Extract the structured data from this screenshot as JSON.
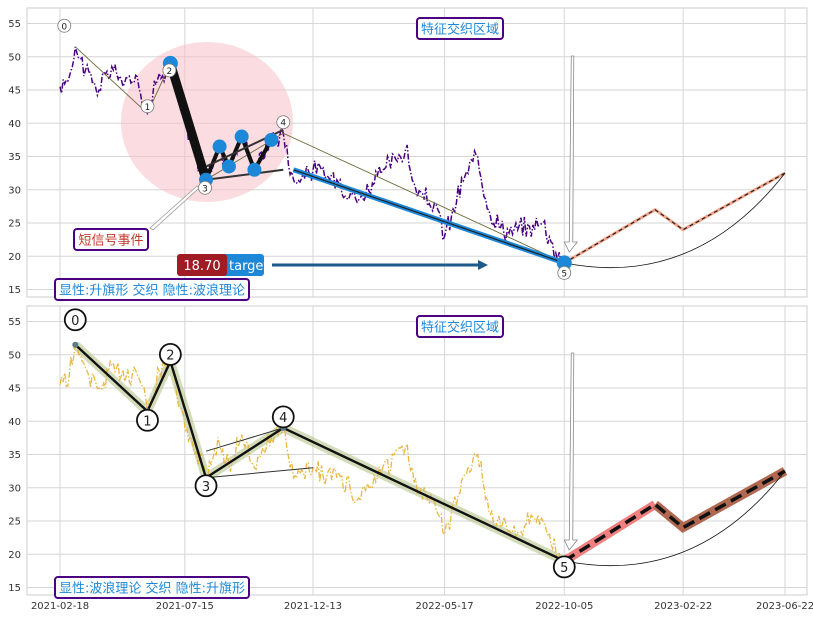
{
  "chart_data": [
    {
      "type": "line",
      "panel": "top",
      "x_ticks": [
        "2021-02-18",
        "2021-07-15",
        "2021-12-13",
        "2022-05-17",
        "2022-10-05",
        "2023-02-22",
        "2023-06-22"
      ],
      "y_ticks": [
        15,
        20,
        25,
        30,
        35,
        40,
        45,
        50,
        55
      ],
      "ylim": [
        14,
        58
      ],
      "grid": true,
      "price_series": {
        "color": "#4b0082",
        "anchors": [
          [
            "2021-02-18",
            45.5
          ],
          [
            "2021-03-01",
            47
          ],
          [
            "2021-03-08",
            51.5
          ],
          [
            "2021-03-20",
            48
          ],
          [
            "2021-04-05",
            45
          ],
          [
            "2021-04-20",
            48.5
          ],
          [
            "2021-05-05",
            46
          ],
          [
            "2021-05-20",
            47
          ],
          [
            "2021-06-01",
            41.5
          ],
          [
            "2021-06-15",
            47.5
          ],
          [
            "2021-06-28",
            49
          ],
          [
            "2021-07-10",
            42
          ],
          [
            "2021-07-25",
            36
          ],
          [
            "2021-08-09",
            31.5
          ],
          [
            "2021-08-25",
            36.5
          ],
          [
            "2021-09-05",
            33.5
          ],
          [
            "2021-09-20",
            38
          ],
          [
            "2021-10-05",
            33
          ],
          [
            "2021-10-25",
            37.5
          ],
          [
            "2021-11-08",
            38.5
          ],
          [
            "2021-11-20",
            31.5
          ],
          [
            "2021-12-13",
            33
          ],
          [
            "2022-01-10",
            31.5
          ],
          [
            "2022-02-05",
            28.5
          ],
          [
            "2022-03-05",
            33
          ],
          [
            "2022-04-01",
            36
          ],
          [
            "2022-04-15",
            29
          ],
          [
            "2022-05-05",
            28
          ],
          [
            "2022-05-17",
            23
          ],
          [
            "2022-06-10",
            32
          ],
          [
            "2022-06-25",
            35
          ],
          [
            "2022-07-10",
            26
          ],
          [
            "2022-08-01",
            23.5
          ],
          [
            "2022-08-25",
            24.5
          ],
          [
            "2022-09-10",
            25
          ],
          [
            "2022-09-25",
            20.5
          ],
          [
            "2022-10-05",
            19
          ]
        ]
      },
      "wave_points": [
        {
          "label": "0",
          "date": "2021-03-08",
          "value": 51.5
        },
        {
          "label": "1",
          "date": "2021-06-01",
          "value": 41.5
        },
        {
          "label": "2",
          "date": "2021-06-28",
          "value": 49
        },
        {
          "label": "3",
          "date": "2021-08-09",
          "value": 31.5
        },
        {
          "label": "4",
          "date": "2021-11-08",
          "value": 38.5
        },
        {
          "label": "5",
          "date": "2022-10-05",
          "value": 19
        }
      ],
      "flag_markers": [
        {
          "date": "2021-06-28",
          "value": 49
        },
        {
          "date": "2021-08-09",
          "value": 31.5
        },
        {
          "date": "2021-08-25",
          "value": 36.5
        },
        {
          "date": "2021-09-05",
          "value": 33.5
        },
        {
          "date": "2021-09-20",
          "value": 38
        },
        {
          "date": "2021-10-05",
          "value": 33
        },
        {
          "date": "2021-10-25",
          "value": 37.5
        },
        {
          "date": "2022-10-05",
          "value": 19
        }
      ],
      "projection": [
        {
          "date": "2022-10-05",
          "value": 19
        },
        {
          "date": "2023-01-20",
          "value": 27
        },
        {
          "date": "2023-02-22",
          "value": 24
        },
        {
          "date": "2023-06-22",
          "value": 32.5
        }
      ],
      "target": {
        "label": "target",
        "value": "18.70"
      },
      "annotations": {
        "feature_box": "特征交织区域",
        "signal_box": "短信号事件",
        "legend_box": "显性:升旗形 交织 隐性:波浪理论"
      }
    },
    {
      "type": "line",
      "panel": "bottom",
      "x_ticks": [
        "2021-02-18",
        "2021-07-15",
        "2021-12-13",
        "2022-05-17",
        "2022-10-05",
        "2023-02-22",
        "2023-06-22"
      ],
      "y_ticks": [
        15,
        20,
        25,
        30,
        35,
        40,
        45,
        50,
        55
      ],
      "ylim": [
        14,
        58
      ],
      "grid": true,
      "price_series": {
        "color": "#e8b030"
      },
      "wave_points": [
        {
          "label": "0",
          "date": "2021-03-08",
          "value": 51.5
        },
        {
          "label": "1",
          "date": "2021-06-01",
          "value": 41.5
        },
        {
          "label": "2",
          "date": "2021-06-28",
          "value": 49
        },
        {
          "label": "3",
          "date": "2021-08-09",
          "value": 31.5
        },
        {
          "label": "4",
          "date": "2021-11-08",
          "value": 39
        },
        {
          "label": "5",
          "date": "2022-10-05",
          "value": 19
        }
      ],
      "projection": [
        {
          "date": "2022-10-05",
          "value": 19
        },
        {
          "date": "2023-01-20",
          "value": 27.5
        },
        {
          "date": "2023-02-22",
          "value": 24
        },
        {
          "date": "2023-06-22",
          "value": 32.5
        }
      ],
      "annotations": {
        "feature_box": "特征交织区域",
        "legend_box": "显性:波浪理论 交织 隐性:升旗形"
      }
    }
  ],
  "colors": {
    "top_price": "#4b0082",
    "bottom_price": "#e8b030",
    "marker_blue": "#1e88d8",
    "circle_pink": "#f5c0c8",
    "projection_pink": "#f08080",
    "projection_brown": "#b06850",
    "box_border": "#4b0082",
    "box_text_blue": "#1e88d8",
    "box_text_red": "#c0392b",
    "target_bg": "#1e88d8",
    "target_value_bg": "#a01c24"
  }
}
